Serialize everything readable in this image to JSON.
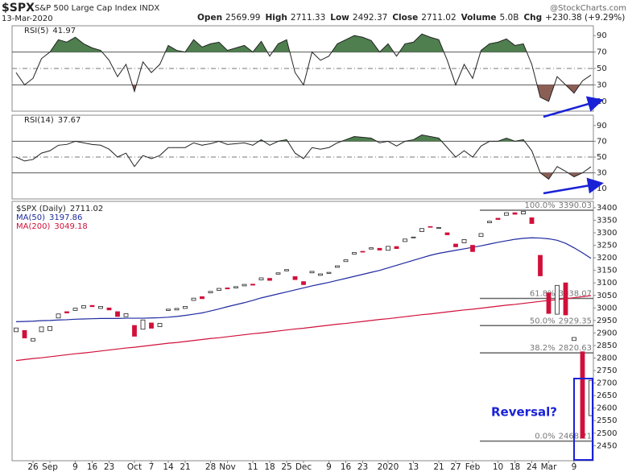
{
  "header": {
    "symbol": "$SPX",
    "name": "S&P 500 Large Cap Index INDX",
    "date": "13-Mar-2020",
    "source": "@StockCharts.com",
    "stats": [
      {
        "label": "Open",
        "value": "2569.99"
      },
      {
        "label": "High",
        "value": "2711.33"
      },
      {
        "label": "Low",
        "value": "2492.37"
      },
      {
        "label": "Close",
        "value": "2711.02"
      },
      {
        "label": "Volume",
        "value": "5.0B"
      },
      {
        "label": "Chg",
        "value": "+230.38 (+9.29%)"
      }
    ]
  },
  "chart_data": [
    {
      "type": "line",
      "name": "RSI(5)",
      "color": "#222222",
      "ylim": [
        0,
        100
      ],
      "yticks": [
        10,
        30,
        50,
        70,
        90
      ],
      "bands": [
        30,
        70
      ],
      "midline": 50,
      "high_fill": "#4f7f4f",
      "low_fill": "#8c5f55",
      "values": [
        45,
        30,
        38,
        62,
        70,
        85,
        82,
        88,
        80,
        75,
        72,
        60,
        40,
        55,
        22,
        58,
        45,
        55,
        78,
        72,
        70,
        85,
        76,
        80,
        82,
        72,
        75,
        78,
        70,
        83,
        65,
        80,
        85,
        45,
        30,
        70,
        60,
        65,
        80,
        85,
        90,
        88,
        84,
        70,
        80,
        65,
        80,
        82,
        92,
        88,
        85,
        60,
        30,
        55,
        38,
        72,
        80,
        82,
        86,
        78,
        80,
        55,
        15,
        10,
        40,
        30,
        20,
        35,
        41.97
      ]
    },
    {
      "type": "line",
      "name": "RSI(14)",
      "color": "#222222",
      "ylim": [
        0,
        100
      ],
      "yticks": [
        10,
        30,
        50,
        70,
        90
      ],
      "bands": [
        30,
        70
      ],
      "midline": 50,
      "high_fill": "#4f7f4f",
      "low_fill": "#8c5f55",
      "values": [
        50,
        45,
        47,
        55,
        58,
        65,
        66,
        70,
        68,
        66,
        65,
        60,
        50,
        55,
        38,
        52,
        48,
        52,
        62,
        62,
        62,
        68,
        65,
        67,
        70,
        66,
        67,
        68,
        65,
        72,
        65,
        70,
        72,
        55,
        48,
        62,
        60,
        62,
        68,
        72,
        76,
        75,
        74,
        68,
        70,
        64,
        70,
        72,
        78,
        76,
        74,
        62,
        50,
        58,
        50,
        64,
        70,
        70,
        74,
        70,
        72,
        58,
        30,
        22,
        38,
        32,
        25,
        30,
        37.67
      ]
    },
    {
      "type": "candlestick",
      "title": "$SPX (Daily)",
      "up_color": "#ffffff",
      "down_color": "#d0103a",
      "categories": [
        null,
        null,
        "26",
        null,
        "Sep",
        null,
        null,
        "9",
        null,
        "16",
        null,
        "23",
        null,
        null,
        "Oct",
        null,
        "7",
        null,
        "14",
        null,
        "21",
        null,
        null,
        "28",
        null,
        "Nov",
        null,
        null,
        "11",
        null,
        "18",
        null,
        "25",
        null,
        "Dec",
        null,
        null,
        "9",
        null,
        "16",
        null,
        "23",
        null,
        null,
        "2020",
        null,
        null,
        "13",
        null,
        null,
        "21",
        null,
        "27",
        null,
        "Feb",
        null,
        null,
        "10",
        null,
        "18",
        null,
        "24",
        null,
        "Mar",
        null,
        null,
        "9",
        null,
        null
      ],
      "open": [
        2905,
        2910,
        2868,
        2905,
        2910,
        2960,
        2985,
        2990,
        3000,
        3010,
        2998,
        3000,
        2985,
        2965,
        2930,
        2915,
        2940,
        2925,
        2990,
        2992,
        2998,
        3030,
        3045,
        3060,
        3070,
        3080,
        3080,
        3088,
        3095,
        3112,
        3118,
        3135,
        3148,
        3125,
        3105,
        3140,
        3130,
        3138,
        3162,
        3185,
        3215,
        3226,
        3235,
        3238,
        3230,
        3245,
        3265,
        3280,
        3305,
        3325,
        3318,
        3300,
        3255,
        3260,
        3250,
        3285,
        3340,
        3358,
        3370,
        3380,
        3375,
        3360,
        3210,
        3060,
        2975,
        3100,
        2870,
        2825,
        2569.99
      ],
      "close": [
        2920,
        2880,
        2878,
        2924,
        2926,
        2976,
        2980,
        2999,
        3009,
        3005,
        3006,
        2992,
        2966,
        2977,
        2887,
        2952,
        2919,
        2938,
        2995,
        2998,
        3006,
        3039,
        3037,
        3066,
        3078,
        3076,
        3085,
        3094,
        3091,
        3120,
        3110,
        3140,
        3153,
        3113,
        3093,
        3146,
        3136,
        3142,
        3168,
        3192,
        3221,
        3224,
        3240,
        3231,
        3246,
        3237,
        3275,
        3283,
        3317,
        3322,
        3321,
        3292,
        3244,
        3273,
        3225,
        3297,
        3346,
        3353,
        3380,
        3374,
        3386,
        3337,
        3128,
        2978,
        3090,
        2972,
        2882,
        2480,
        2711.02
      ],
      "series": [
        {
          "name": "MA(50)",
          "color": "#1f2aa0",
          "values": [
            2945,
            2946,
            2947,
            2949,
            2950,
            2952,
            2953,
            2955,
            2956,
            2957,
            2958,
            2958,
            2958,
            2959,
            2959,
            2959,
            2960,
            2961,
            2963,
            2966,
            2970,
            2975,
            2980,
            2988,
            2996,
            3005,
            3013,
            3021,
            3030,
            3040,
            3048,
            3056,
            3064,
            3072,
            3080,
            3088,
            3095,
            3102,
            3110,
            3118,
            3126,
            3134,
            3142,
            3150,
            3160,
            3170,
            3180,
            3190,
            3200,
            3210,
            3218,
            3224,
            3230,
            3236,
            3242,
            3248,
            3255,
            3262,
            3268,
            3274,
            3278,
            3280,
            3279,
            3276,
            3270,
            3258,
            3240,
            3220,
            3197.86
          ]
        },
        {
          "name": "MA(200)",
          "color": "#d0103a",
          "values": [
            2790,
            2794,
            2798,
            2801,
            2805,
            2809,
            2813,
            2817,
            2820,
            2824,
            2828,
            2832,
            2836,
            2840,
            2843,
            2847,
            2851,
            2855,
            2859,
            2862,
            2866,
            2870,
            2874,
            2878,
            2881,
            2885,
            2889,
            2893,
            2897,
            2900,
            2904,
            2908,
            2912,
            2916,
            2919,
            2923,
            2927,
            2931,
            2935,
            2938,
            2942,
            2946,
            2950,
            2954,
            2957,
            2961,
            2965,
            2969,
            2973,
            2976,
            2980,
            2984,
            2988,
            2992,
            2995,
            2999,
            3003,
            3007,
            3011,
            3014,
            3018,
            3022,
            3026,
            3030,
            3033,
            3037,
            3041,
            3045,
            3049.18
          ]
        }
      ],
      "ylim": [
        2390,
        3419
      ],
      "yticks": [
        2450,
        2500,
        2550,
        2600,
        2650,
        2700,
        2750,
        2800,
        2850,
        2900,
        2950,
        3000,
        3050,
        3100,
        3150,
        3200,
        3250,
        3300,
        3350,
        3400
      ],
      "fib": [
        {
          "label": "100.0%",
          "value": 3390.03
        },
        {
          "label": "61.8%",
          "value": 3038.07
        },
        {
          "label": "50.0%",
          "value": 2929.35
        },
        {
          "label": "38.2%",
          "value": 2820.63
        },
        {
          "label": "0.0%",
          "value": 2468.21
        }
      ],
      "annotation": "Reversal?"
    }
  ]
}
